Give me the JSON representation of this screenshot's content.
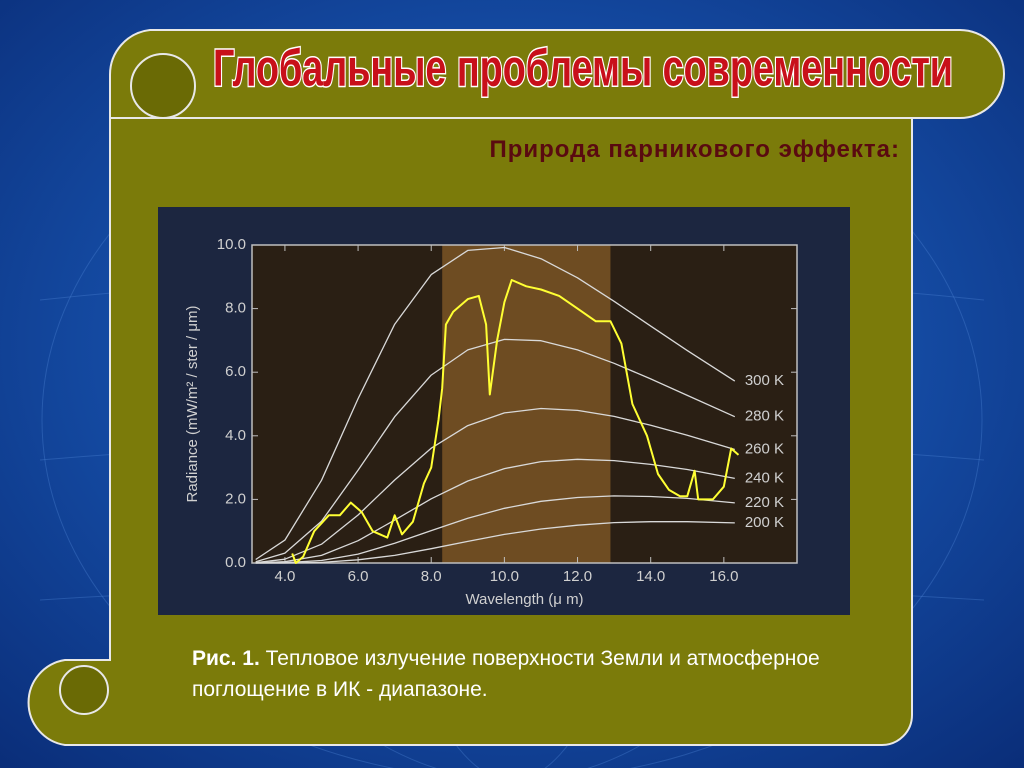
{
  "slide": {
    "title": "Глобальные проблемы современности",
    "subtitle": "Природа парникового эффекта:",
    "caption": {
      "label": "Рис. 1.",
      "text": "Тепловое излучение поверхности Земли и атмосферное поглощение в ИК - диапазоне."
    }
  },
  "chart_data": {
    "type": "line",
    "xlabel": "Wavelength (μ m)",
    "ylabel": "Radiance (mW/m² / ster / μm)",
    "xlim": [
      3.1,
      18.0
    ],
    "ylim": [
      0,
      10
    ],
    "xticks": [
      {
        "value": 4,
        "label": "4.0"
      },
      {
        "value": 6,
        "label": "6.0"
      },
      {
        "value": 8,
        "label": "8.0"
      },
      {
        "value": 10,
        "label": "10.0"
      },
      {
        "value": 12,
        "label": "12.0"
      },
      {
        "value": 14,
        "label": "14.0"
      },
      {
        "value": 16,
        "label": "16.0"
      }
    ],
    "yticks": [
      {
        "value": 0,
        "label": "0.0"
      },
      {
        "value": 2,
        "label": "2.0"
      },
      {
        "value": 4,
        "label": "4.0"
      },
      {
        "value": 6,
        "label": "6.0"
      },
      {
        "value": 8,
        "label": "8.0"
      },
      {
        "value": 10,
        "label": "10.0"
      }
    ],
    "shaded_band": {
      "x": [
        8.3,
        12.9
      ],
      "color": "#6e4c22"
    },
    "series": [
      {
        "name": "300 K",
        "color": "#d9d9d9",
        "x": [
          3.2,
          4,
          5,
          6,
          7,
          8,
          9,
          10,
          11,
          12,
          13,
          14,
          15,
          16.3
        ],
        "values": [
          0.11,
          0.72,
          2.6,
          5.17,
          7.51,
          9.07,
          9.83,
          9.92,
          9.57,
          8.97,
          8.23,
          7.45,
          6.68,
          5.72
        ]
      },
      {
        "name": "280 K",
        "color": "#d9d9d9",
        "x": [
          3.2,
          4,
          5,
          6,
          7,
          8,
          9,
          10,
          11,
          12,
          13,
          14,
          15,
          16.3
        ],
        "values": [
          0.04,
          0.31,
          1.31,
          2.92,
          4.6,
          5.91,
          6.7,
          7.03,
          6.99,
          6.7,
          6.28,
          5.79,
          5.27,
          4.6
        ]
      },
      {
        "name": "260 K",
        "color": "#d9d9d9",
        "x": [
          3.2,
          4,
          5,
          6,
          7,
          8,
          9,
          10,
          11,
          12,
          13,
          14,
          15,
          16.3
        ],
        "values": [
          0.01,
          0.12,
          0.59,
          1.51,
          2.61,
          3.61,
          4.32,
          4.72,
          4.86,
          4.8,
          4.61,
          4.33,
          4.02,
          3.57
        ]
      },
      {
        "name": "240 K",
        "color": "#d9d9d9",
        "x": [
          3.2,
          4,
          5,
          6,
          7,
          8,
          9,
          10,
          11,
          12,
          13,
          14,
          15,
          16.3
        ],
        "values": [
          0,
          0.04,
          0.24,
          0.7,
          1.35,
          2.02,
          2.58,
          2.97,
          3.19,
          3.26,
          3.22,
          3.1,
          2.94,
          2.66
        ]
      },
      {
        "name": "220 K",
        "color": "#d9d9d9",
        "x": [
          3.2,
          4,
          5,
          6,
          7,
          8,
          9,
          10,
          11,
          12,
          13,
          14,
          15,
          16.3
        ],
        "values": [
          0,
          0.01,
          0.08,
          0.28,
          0.62,
          1.02,
          1.41,
          1.72,
          1.94,
          2.06,
          2.11,
          2.09,
          2.03,
          1.89
        ]
      },
      {
        "name": "200 K",
        "color": "#d9d9d9",
        "x": [
          3.2,
          4,
          5,
          6,
          7,
          8,
          9,
          10,
          11,
          12,
          13,
          14,
          15,
          16.3
        ],
        "values": [
          0,
          0,
          0.02,
          0.1,
          0.24,
          0.45,
          0.68,
          0.9,
          1.07,
          1.19,
          1.27,
          1.3,
          1.3,
          1.26
        ]
      },
      {
        "color": "#ffff33",
        "x": [
          4.2,
          4.3,
          4.5,
          4.8,
          5.2,
          5.5,
          5.8,
          6.1,
          6.4,
          6.8,
          7.0,
          7.2,
          7.5,
          7.8,
          8.0,
          8.2,
          8.3,
          8.4,
          8.6,
          9.0,
          9.3,
          9.5,
          9.6,
          9.8,
          10.0,
          10.2,
          10.6,
          11.0,
          11.5,
          12.0,
          12.5,
          12.9,
          13.2,
          13.5,
          13.7,
          13.9,
          14.2,
          14.5,
          14.8,
          15.0,
          15.2,
          15.3,
          15.7,
          16.0,
          16.2,
          16.4
        ],
        "values": [
          0.3,
          0.0,
          0.2,
          1.0,
          1.5,
          1.5,
          1.9,
          1.6,
          1.0,
          0.8,
          1.5,
          0.9,
          1.3,
          2.5,
          3.0,
          4.5,
          5.5,
          7.5,
          7.9,
          8.3,
          8.4,
          7.5,
          5.3,
          7.0,
          8.2,
          8.9,
          8.7,
          8.6,
          8.4,
          8.0,
          7.6,
          7.6,
          6.9,
          5.0,
          4.5,
          4.0,
          2.8,
          2.3,
          2.1,
          2.1,
          2.9,
          2.0,
          2.0,
          2.4,
          3.6,
          3.4
        ]
      }
    ]
  }
}
